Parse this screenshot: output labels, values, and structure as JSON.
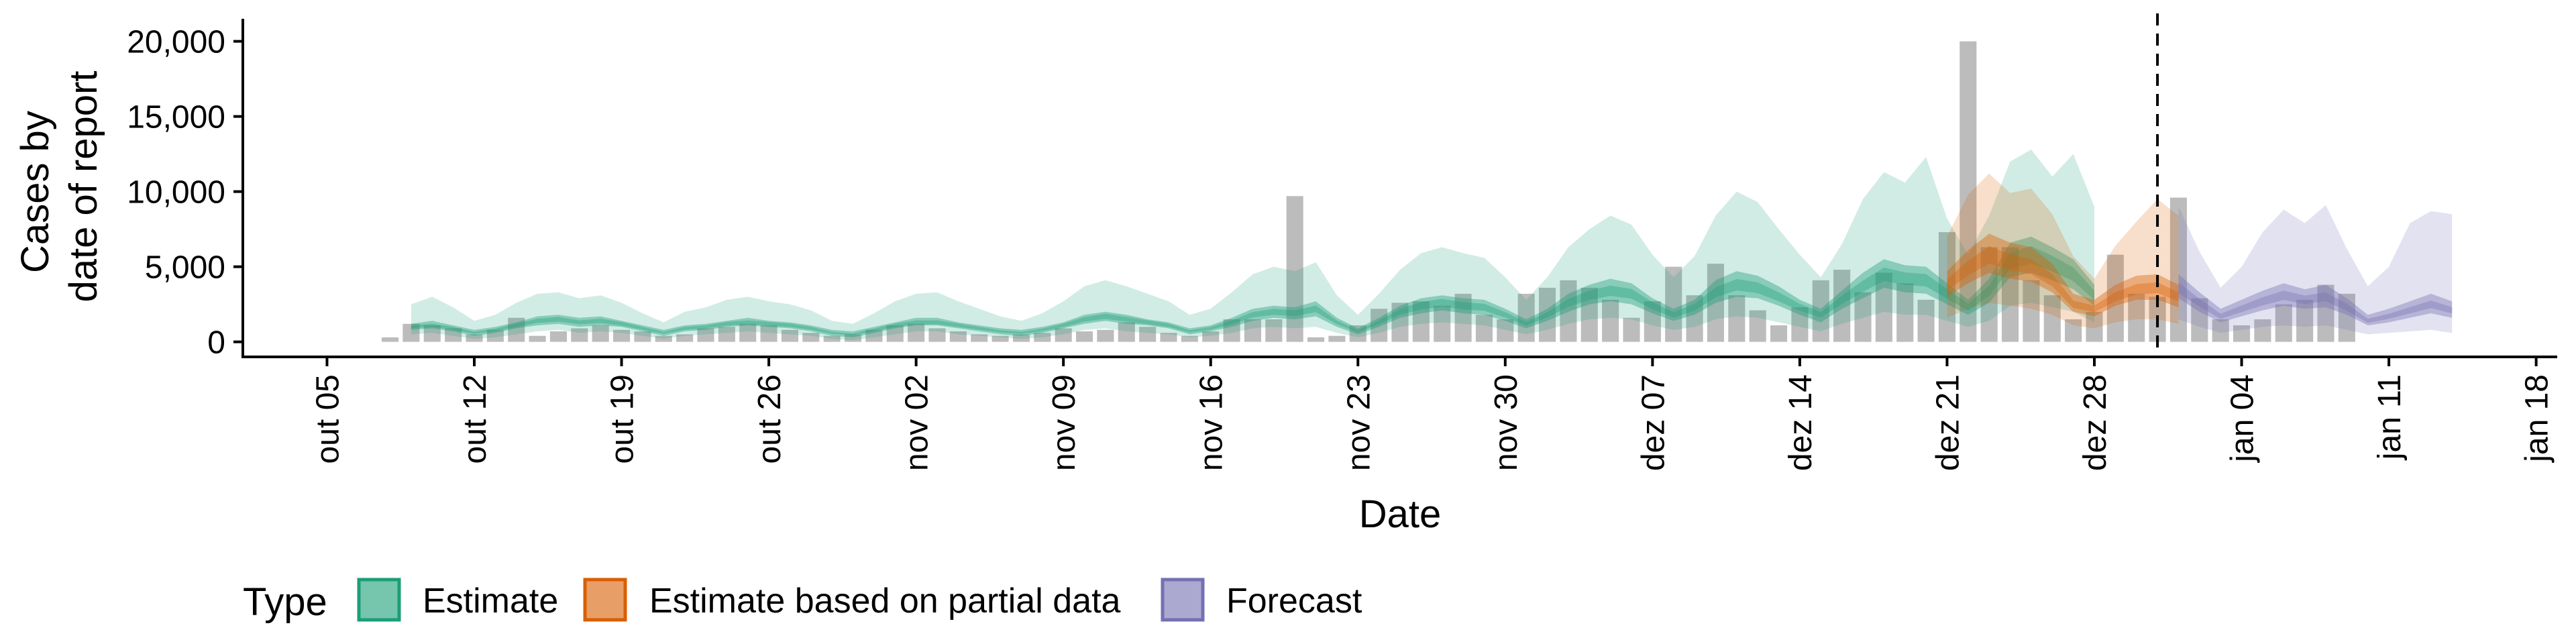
{
  "chart_data": {
    "type": "area",
    "xlabel": "Date",
    "ylabel_lines": [
      "Cases by",
      "date of report"
    ],
    "y_ticks": [
      0,
      5000,
      10000,
      15000,
      20000
    ],
    "y_tick_labels": [
      "0",
      "5,000",
      "10,000",
      "15,000",
      "20,000"
    ],
    "ylim": [
      -1000,
      21500
    ],
    "xlim": [
      "2020-10-01",
      "2021-01-19"
    ],
    "x_ticks": [
      "2020-10-05",
      "2020-10-12",
      "2020-10-19",
      "2020-10-26",
      "2020-11-02",
      "2020-11-09",
      "2020-11-16",
      "2020-11-23",
      "2020-11-30",
      "2020-12-07",
      "2020-12-14",
      "2020-12-21",
      "2020-12-28",
      "2021-01-04",
      "2021-01-11",
      "2021-01-18"
    ],
    "x_tick_labels": [
      "out 05",
      "out 12",
      "out 19",
      "out 26",
      "nov 02",
      "nov 09",
      "nov 16",
      "nov 23",
      "nov 30",
      "dez 07",
      "dez 14",
      "dez 21",
      "dez 28",
      "jan 04",
      "jan 11",
      "jan 18"
    ],
    "vline_date": "2020-12-31",
    "grid": false,
    "legend_position": "bottom",
    "legend": {
      "title": "Type",
      "items": [
        {
          "label": "Estimate",
          "color": "#1b9e77"
        },
        {
          "label": "Estimate based on partial data",
          "color": "#d95f02"
        },
        {
          "label": "Forecast",
          "color": "#7570b3"
        }
      ]
    },
    "bars": {
      "color": "#a6a6a6",
      "start_date": "2020-10-08",
      "values": [
        300,
        1200,
        1100,
        900,
        500,
        800,
        1600,
        400,
        700,
        900,
        1100,
        800,
        700,
        400,
        500,
        900,
        1000,
        1200,
        1100,
        800,
        600,
        400,
        500,
        800,
        1100,
        1200,
        900,
        700,
        500,
        400,
        500,
        600,
        900,
        700,
        800,
        1300,
        1000,
        600,
        400,
        700,
        1500,
        1500,
        1500,
        9700,
        300,
        400,
        1100,
        2200,
        2600,
        2700,
        2400,
        3200,
        1800,
        1500,
        3200,
        3600,
        4100,
        3600,
        2800,
        1600,
        2700,
        5000,
        3100,
        5200,
        3100,
        2100,
        1100,
        2300,
        4100,
        4800,
        3300,
        4600,
        3900,
        2800,
        7300,
        20000,
        6300,
        6300,
        4100,
        3100,
        1500,
        2000,
        5800,
        3200,
        3000,
        9600,
        2900,
        1500,
        1100,
        1500,
        2500,
        2800,
        3800,
        3200
      ]
    },
    "series": [
      {
        "name": "Estimate",
        "color": "#1b9e77",
        "start_date": "2020-10-09",
        "median": [
          1000,
          1100,
          900,
          600,
          800,
          1100,
          1400,
          1500,
          1300,
          1400,
          1200,
          900,
          600,
          900,
          1000,
          1200,
          1300,
          1200,
          1100,
          900,
          600,
          500,
          800,
          1100,
          1300,
          1300,
          1100,
          900,
          700,
          600,
          800,
          1100,
          1500,
          1700,
          1500,
          1300,
          1100,
          700,
          900,
          1300,
          1800,
          2000,
          1900,
          2200,
          1300,
          700,
          1300,
          2000,
          2400,
          2600,
          2400,
          2300,
          1800,
          1200,
          1800,
          2600,
          3100,
          3400,
          3200,
          2400,
          1800,
          2300,
          3300,
          3800,
          3600,
          3000,
          2300,
          1800,
          2800,
          3700,
          4500,
          4200,
          4100,
          3200,
          2300,
          3400,
          5400,
          5800,
          5200,
          4500,
          3100
        ],
        "lower50": [
          800,
          900,
          700,
          400,
          600,
          900,
          1100,
          1200,
          1000,
          1100,
          1000,
          700,
          400,
          700,
          800,
          1000,
          1100,
          1000,
          900,
          700,
          400,
          300,
          600,
          900,
          1100,
          1100,
          900,
          700,
          500,
          400,
          600,
          900,
          1200,
          1400,
          1200,
          1100,
          900,
          500,
          700,
          1000,
          1400,
          1600,
          1500,
          1700,
          1000,
          500,
          1000,
          1600,
          1900,
          2100,
          1900,
          1800,
          1400,
          900,
          1400,
          2000,
          2500,
          2700,
          2500,
          1900,
          1400,
          1800,
          2600,
          3000,
          2900,
          2400,
          1800,
          1300,
          2200,
          2900,
          3600,
          3300,
          3200,
          2500,
          1800,
          2600,
          4300,
          4600,
          4100,
          3500,
          2400
        ],
        "upper50": [
          1200,
          1400,
          1100,
          800,
          1000,
          1300,
          1700,
          1800,
          1600,
          1700,
          1400,
          1100,
          800,
          1100,
          1200,
          1400,
          1600,
          1400,
          1300,
          1100,
          800,
          700,
          1000,
          1300,
          1600,
          1600,
          1300,
          1100,
          900,
          800,
          1000,
          1300,
          1800,
          2000,
          1800,
          1500,
          1300,
          900,
          1100,
          1600,
          2200,
          2400,
          2300,
          2700,
          1600,
          900,
          1600,
          2400,
          2900,
          3100,
          2900,
          2800,
          2200,
          1500,
          2200,
          3200,
          3800,
          4200,
          3900,
          2900,
          2200,
          2800,
          4100,
          4700,
          4400,
          3700,
          2800,
          2200,
          3400,
          4600,
          5500,
          5100,
          5000,
          3900,
          2800,
          4200,
          6600,
          7000,
          6300,
          5500,
          3800
        ],
        "lower90": [
          500,
          600,
          400,
          200,
          300,
          500,
          700,
          800,
          600,
          700,
          600,
          400,
          200,
          400,
          500,
          600,
          700,
          600,
          500,
          400,
          200,
          100,
          300,
          500,
          700,
          700,
          500,
          400,
          300,
          200,
          300,
          500,
          800,
          900,
          700,
          600,
          500,
          300,
          400,
          600,
          900,
          1000,
          900,
          1000,
          600,
          300,
          600,
          1000,
          1200,
          1300,
          1200,
          1100,
          800,
          500,
          800,
          1200,
          1500,
          1600,
          1500,
          1100,
          800,
          1000,
          1500,
          1700,
          1600,
          1300,
          1000,
          700,
          1200,
          1600,
          2000,
          1800,
          1800,
          1400,
          1000,
          1400,
          2400,
          2600,
          2300,
          2000,
          1300
        ],
        "upper90": [
          2500,
          3000,
          2300,
          1400,
          1800,
          2600,
          3200,
          3300,
          2900,
          3100,
          2600,
          1900,
          1300,
          2000,
          2300,
          2800,
          3000,
          2700,
          2500,
          2100,
          1400,
          1200,
          1900,
          2700,
          3200,
          3300,
          2700,
          2200,
          1700,
          1400,
          1900,
          2700,
          3700,
          4100,
          3700,
          3200,
          2700,
          1800,
          2200,
          3300,
          4500,
          5000,
          4700,
          5300,
          3100,
          1800,
          3200,
          4800,
          5900,
          6300,
          5900,
          5600,
          4300,
          2800,
          4300,
          6300,
          7500,
          8400,
          7800,
          5800,
          4300,
          5700,
          8400,
          10000,
          9300,
          7500,
          5800,
          4300,
          6500,
          9500,
          11300,
          10600,
          12300,
          8200,
          5800,
          8400,
          12000,
          12800,
          11000,
          12500,
          9000
        ]
      },
      {
        "name": "Estimate based on partial data",
        "color": "#d95f02",
        "start_date": "2020-12-21",
        "median": [
          3800,
          4900,
          5800,
          5300,
          5000,
          4100,
          2500,
          2200,
          3000,
          3500,
          3600,
          3000
        ],
        "lower50": [
          3000,
          3900,
          4600,
          4200,
          4000,
          3300,
          2000,
          1700,
          2400,
          2800,
          2800,
          2300
        ],
        "upper50": [
          4700,
          6100,
          7200,
          6600,
          6300,
          5200,
          3200,
          2800,
          3800,
          4400,
          4500,
          3800
        ],
        "lower90": [
          1600,
          2200,
          2600,
          2400,
          2200,
          1800,
          1100,
          900,
          1300,
          1500,
          1500,
          1200
        ],
        "upper90": [
          7000,
          9800,
          11200,
          9900,
          10200,
          8500,
          5700,
          4200,
          6400,
          8000,
          9500,
          8400
        ]
      },
      {
        "name": "Forecast",
        "color": "#7570b3",
        "start_date": "2021-01-01",
        "median": [
          3600,
          2600,
          1700,
          2200,
          2700,
          3100,
          2800,
          3000,
          2300,
          1400,
          1700,
          2100,
          2500,
          2100
        ],
        "lower50": [
          2900,
          2000,
          1300,
          1700,
          2100,
          2400,
          2200,
          2300,
          1800,
          1100,
          1300,
          1600,
          1900,
          1600
        ],
        "upper50": [
          4500,
          3300,
          2200,
          2800,
          3400,
          3900,
          3500,
          3800,
          2900,
          1800,
          2200,
          2700,
          3200,
          2700
        ],
        "lower90": [
          1500,
          1000,
          600,
          800,
          1000,
          1100,
          1000,
          1100,
          800,
          500,
          600,
          700,
          800,
          600
        ],
        "upper90": [
          9000,
          6000,
          3600,
          5000,
          7300,
          8800,
          7900,
          9100,
          6200,
          3700,
          5000,
          7900,
          8700,
          8500
        ]
      }
    ]
  }
}
